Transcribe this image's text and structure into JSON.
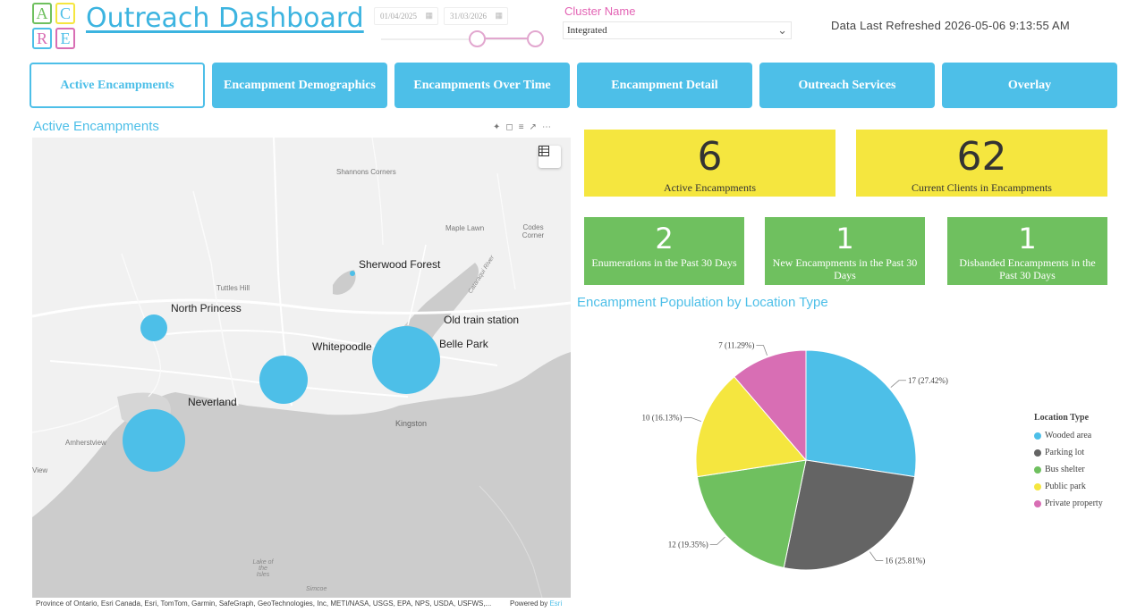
{
  "header": {
    "logo_letters": [
      "A",
      "C",
      "R",
      "E"
    ],
    "title": "Outreach Dashboard",
    "date_start": "01/04/2025",
    "date_end": "31/03/2026",
    "date_range_fraction": [
      0.59,
      0.95
    ],
    "cluster_label": "Cluster Name",
    "cluster_value": "Integrated",
    "refreshed": "Data Last Refreshed 2026-05-06 9:13:55 AM"
  },
  "tabs": [
    {
      "label": "Active Encampments",
      "active": true
    },
    {
      "label": "Encampment Demographics",
      "active": false
    },
    {
      "label": "Encampments Over Time",
      "active": false
    },
    {
      "label": "Encampment Detail",
      "active": false
    },
    {
      "label": "Outreach Services",
      "active": false
    },
    {
      "label": "Overlay",
      "active": false
    }
  ],
  "map": {
    "title": "Active Encampments",
    "places_major": [
      "Sherwood Forest",
      "North Princess",
      "Old train station",
      "Whitepoodle",
      "Belle Park",
      "Neverland"
    ],
    "places_minor": [
      "Shannons Corners",
      "Maple Lawn",
      "Codes Corner",
      "Tuttles Hill",
      "Kingston",
      "Amherstview",
      "View",
      "Simcoe",
      "Lake of the Isles",
      "Cataraqui River"
    ],
    "attribution": "Province of Ontario, Esri Canada, Esri, TomTom, Garmin, SafeGraph, GeoTechnologies, Inc, METI/NASA, USGS, EPA, NPS, USDA, USFWS,...",
    "powered_prefix": "Powered by ",
    "powered_brand": "Esri"
  },
  "kpis": {
    "active_encampments": {
      "value": "6",
      "label": "Active Encampments"
    },
    "current_clients": {
      "value": "62",
      "label": "Current Clients in Encampments"
    },
    "enumerations": {
      "value": "2",
      "label": "Enumerations in the Past 30 Days"
    },
    "new_encampments": {
      "value": "1",
      "label": "New Encampments in the Past 30 Days"
    },
    "disbanded": {
      "value": "1",
      "label": "Disbanded Encampments in the Past 30 Days"
    }
  },
  "pie": {
    "title": "Encampment Population by Location Type",
    "legend_title": "Location Type"
  },
  "chart_data": {
    "type": "pie",
    "title": "Encampment Population by Location Type",
    "legend_title": "Location Type",
    "legend_position": "right",
    "categories": [
      "Wooded area",
      "Parking lot",
      "Bus shelter",
      "Public park",
      "Private property"
    ],
    "values": [
      17,
      16,
      12,
      10,
      7
    ],
    "data_labels": [
      "17 (27.42%)",
      "16 (25.81%)",
      "12 (19.35%)",
      "10 (16.13%)",
      "7 (11.29%)"
    ],
    "colors": [
      "#4dbfe8",
      "#646464",
      "#6fc05f",
      "#f5e63f",
      "#d86eb4"
    ]
  },
  "colors": {
    "accent": "#4dbfe8",
    "kpi_yellow": "#f5e63f",
    "kpi_green": "#6fc05f",
    "filter_pink": "#e363b4"
  }
}
